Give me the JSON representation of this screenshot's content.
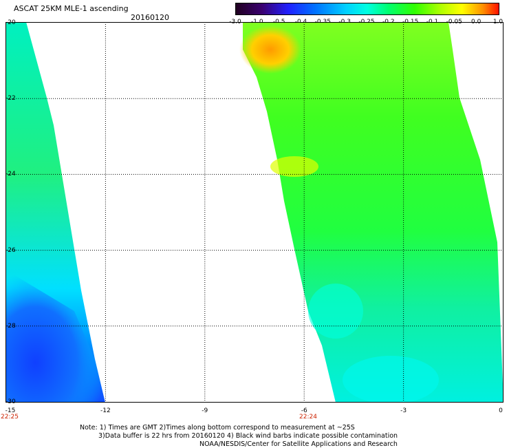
{
  "header": {
    "title": "ASCAT 25KM MLE-1 ascending",
    "date": "20160120"
  },
  "colorbar": {
    "labels": [
      "-3.0",
      "-1.0",
      "-0.5",
      "-0.4",
      "-0.35",
      "-0.3",
      "-0.25",
      "-0.2",
      "-0.15",
      "-0.1",
      "-0.05",
      "0.0",
      "1.0"
    ],
    "colors": [
      "#2a0030",
      "#4b00a0",
      "#0000ff",
      "#0060ff",
      "#00a0ff",
      "#00e0ff",
      "#00ffb0",
      "#00ff40",
      "#60ff00",
      "#c0ff00",
      "#ffff00",
      "#ffa000",
      "#ff2000"
    ]
  },
  "axes": {
    "lon_ticks": [
      "-15",
      "-12",
      "-9",
      "-6",
      "-3",
      "0"
    ],
    "lat_ticks": [
      "-20",
      "-22",
      "-24",
      "-26",
      "-28",
      "-30"
    ],
    "time_labels": [
      "22:25",
      "22:24"
    ]
  },
  "footer": {
    "line1": "Note: 1) Times are GMT 2)Times along bottom correspond to measurement at ~25S",
    "line2": "3)Data buffer is 22 hrs from 20160120 4) Black wind barbs indicate possible contamination",
    "line3": "NOAA/NESDIS/Center for Satellite Applications and Research"
  }
}
